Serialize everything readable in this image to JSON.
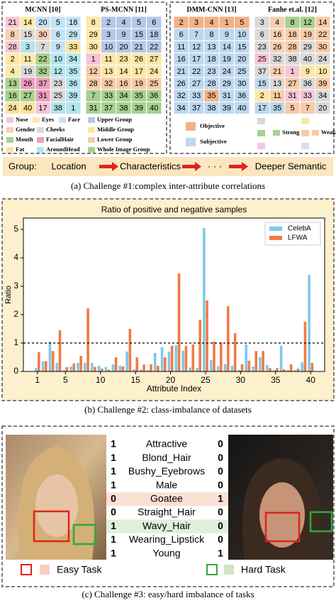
{
  "panel_a": {
    "grids": [
      {
        "title": "MCNN [10]",
        "cells": [
          [
            21,
            14,
            20,
            5,
            18
          ],
          [
            8,
            15,
            30,
            6,
            29
          ],
          [
            28,
            3,
            7,
            9,
            33
          ],
          [
            2,
            11,
            22,
            10,
            34
          ],
          [
            4,
            19,
            32,
            12,
            35
          ],
          [
            13,
            26,
            37,
            23,
            36
          ],
          [
            16,
            27,
            31,
            25,
            39
          ],
          [
            24,
            40,
            17,
            38,
            1
          ]
        ],
        "legend": [
          "Nose",
          "Eyes",
          "Face",
          "Gender",
          "Cheeks",
          "Mouth",
          "FacialHair",
          "Fat",
          "AroundHead"
        ]
      },
      {
        "title": "PS-MCNN [11]",
        "cells": [
          [
            8,
            2,
            4,
            5,
            6
          ],
          [
            29,
            3,
            9,
            15,
            18
          ],
          [
            30,
            10,
            20,
            21,
            22
          ],
          [
            1,
            11,
            23,
            26,
            27
          ],
          [
            12,
            13,
            14,
            17,
            24
          ],
          [
            28,
            32,
            16,
            19,
            25
          ],
          [
            7,
            33,
            34,
            35,
            36
          ],
          [
            31,
            37,
            38,
            39,
            40
          ]
        ],
        "legend": [
          "Upper Group",
          "Middle Group",
          "Lower Group",
          "Whole Image  Group"
        ]
      },
      {
        "title": "DMM-CNN [13]",
        "cells": [
          [
            2,
            3,
            4,
            1,
            5
          ],
          [
            6,
            7,
            8,
            9,
            10
          ],
          [
            11,
            12,
            13,
            14,
            15
          ],
          [
            16,
            17,
            18,
            19,
            20
          ],
          [
            21,
            22,
            23,
            24,
            25
          ],
          [
            26,
            27,
            28,
            29,
            30
          ],
          [
            32,
            33,
            35,
            31,
            36
          ],
          [
            34,
            37,
            38,
            39,
            40
          ]
        ],
        "legend": [
          "Objective",
          "Subjective"
        ]
      },
      {
        "title": "Fanhe et.al. [12]",
        "cells": [
          [
            3,
            4,
            8,
            12,
            14
          ],
          [
            6,
            16,
            18,
            19,
            22
          ],
          [
            23,
            26,
            28,
            29,
            30
          ],
          [
            25,
            32,
            38,
            40,
            24
          ],
          [
            37,
            21,
            1,
            9,
            10
          ],
          [
            15,
            13,
            27,
            36,
            39
          ],
          [
            2,
            11,
            31,
            33,
            34
          ],
          [
            17,
            35,
            5,
            7,
            20
          ]
        ],
        "legend": [
          "Strong",
          "Weak"
        ]
      }
    ],
    "group_row": {
      "label": "Group:",
      "steps": [
        "Location",
        "Characteristics",
        "· · ·",
        "Deeper Semantic"
      ]
    },
    "caption": "(a) Challenge #1:complex inter-attribute correlations"
  },
  "chart_data": {
    "type": "bar",
    "title": "Ratio of positive and negative samples",
    "x_label": "Attribute Index",
    "y_label": "Ratio",
    "x": [
      1,
      2,
      3,
      4,
      5,
      6,
      7,
      8,
      9,
      10,
      11,
      12,
      13,
      14,
      15,
      16,
      17,
      18,
      19,
      20,
      21,
      22,
      23,
      24,
      25,
      26,
      27,
      28,
      29,
      30,
      31,
      32,
      33,
      34,
      35,
      36,
      37,
      38,
      39,
      40
    ],
    "series": [
      {
        "name": "CelebA",
        "color": "#80c8e8",
        "values": [
          0.12,
          0.36,
          1.05,
          0.3,
          0.05,
          0.18,
          0.3,
          0.3,
          0.3,
          0.2,
          0.16,
          0.25,
          0.2,
          0.7,
          0.08,
          0.07,
          0.05,
          0.65,
          0.85,
          0.7,
          0.92,
          0.73,
          0.14,
          0.13,
          5.05,
          0.4,
          0.18,
          0.26,
          0.2,
          0.05,
          0.95,
          0.18,
          0.5,
          0.23,
          0.05,
          0.9,
          0.05,
          0.05,
          0.32,
          3.4
        ]
      },
      {
        "name": "LFWA",
        "color": "#f07b45",
        "values": [
          0.68,
          0.36,
          0.72,
          1.45,
          0.15,
          0.28,
          0.55,
          2.22,
          0.16,
          0.1,
          0.06,
          0.5,
          0.18,
          1.5,
          0.5,
          0.24,
          0.25,
          0.2,
          0.5,
          0.9,
          3.45,
          0.9,
          0.95,
          1.82,
          2.5,
          1.05,
          1.02,
          2.3,
          1.35,
          0.25,
          0.38,
          0.72,
          0.72,
          0.12,
          0.12,
          0.08,
          0.25,
          0.1,
          1.75,
          0.3
        ]
      }
    ],
    "xlim": [
      -1,
      42
    ],
    "xticks": [
      1,
      5,
      10,
      15,
      20,
      25,
      30,
      35,
      40
    ],
    "ylim": [
      0,
      5.4
    ],
    "yticks": [
      0,
      1,
      2,
      3,
      4,
      5
    ],
    "reference_line": 1,
    "legend": "upper right"
  },
  "panel_b": {
    "caption": "(b) Challenge #2: class-imbalance of datasets"
  },
  "panel_c": {
    "rows": [
      {
        "left": 1,
        "name": "Attractive",
        "right": 0
      },
      {
        "left": 1,
        "name": "Blond_Hair",
        "right": 0
      },
      {
        "left": 1,
        "name": "Bushy_Eyebrows",
        "right": 0
      },
      {
        "left": 1,
        "name": "Male",
        "right": 0
      },
      {
        "left": 0,
        "name": "Goatee",
        "right": 1
      },
      {
        "left": 0,
        "name": "Straight_Hair",
        "right": 0
      },
      {
        "left": 1,
        "name": "Wavy_Hair",
        "right": 0
      },
      {
        "left": 1,
        "name": "Wearing_Lipstick",
        "right": 0
      },
      {
        "left": 1,
        "name": "Young",
        "right": 1
      }
    ],
    "legend": [
      "Easy Task",
      "Hard Task"
    ],
    "caption": "(c) Challenge #3: easy/hard imbalance of  tasks"
  }
}
